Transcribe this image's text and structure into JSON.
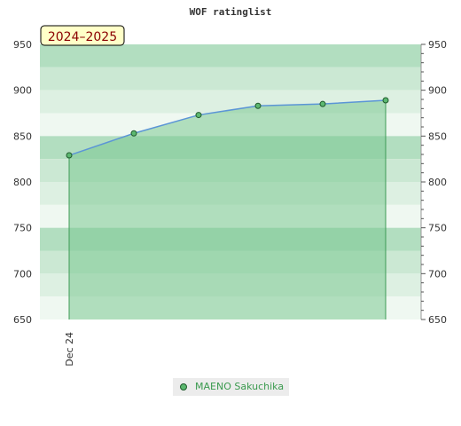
{
  "chart_data": {
    "type": "line",
    "title": "WOF ratinglist",
    "badge": "2024–2025",
    "x_tick_labels": [
      "Dec 24"
    ],
    "y_ticks": [
      650,
      700,
      750,
      800,
      850,
      900,
      950
    ],
    "ylim": [
      650,
      950
    ],
    "series": [
      {
        "name": "MAENO Sakuchika",
        "values": [
          829,
          853,
          873,
          883,
          885,
          889
        ]
      }
    ],
    "fill": "area",
    "legend_position": "bottom-center",
    "colors": {
      "line": "#5b95d6",
      "area": "#7cc892",
      "marker_fill": "#5cb870",
      "marker_stroke": "#1f5a2c",
      "band_dark": "#b2dec0",
      "band_mid": "#cbe8d3",
      "band_light": "#ddf0e2",
      "band_lightest": "#eff8f1",
      "badge_bg": "#ffffc8",
      "badge_text": "#8b0000"
    }
  }
}
